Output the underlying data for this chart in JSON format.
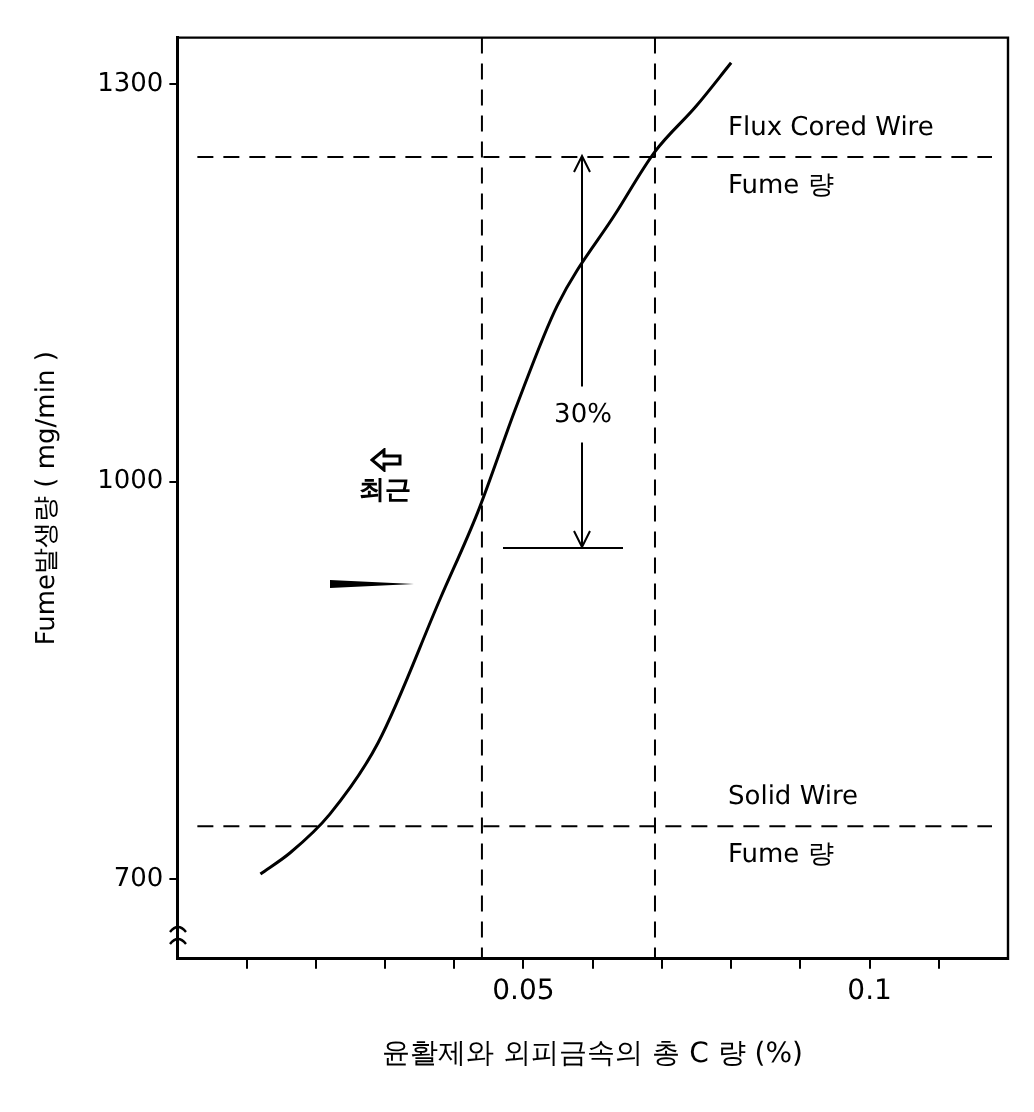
{
  "chart_data": {
    "type": "line",
    "xlabel": "윤활제와 외피금속의 총 C 량 (%)",
    "ylabel": "Fume발생량 ( mg/min )",
    "x": [
      0.012,
      0.0163,
      0.022,
      0.029,
      0.038,
      0.0434,
      0.049,
      0.0549,
      0.0634,
      0.069,
      0.0749,
      0.08
    ],
    "series": [
      {
        "color": "#000000",
        "values": [
          704,
          720,
          749,
          803,
          912,
          977,
          1057,
          1133,
          1203,
          1249,
          1283,
          1316
        ]
      }
    ],
    "xlim": [
      0,
      0.12
    ],
    "xticks": [
      {
        "value": 0.01,
        "label": null
      },
      {
        "value": 0.02,
        "label": null
      },
      {
        "value": 0.03,
        "label": null
      },
      {
        "value": 0.04,
        "label": null
      },
      {
        "value": 0.05,
        "label": "0.05"
      },
      {
        "value": 0.06,
        "label": null
      },
      {
        "value": 0.07,
        "label": null
      },
      {
        "value": 0.08,
        "label": null
      },
      {
        "value": 0.09,
        "label": null
      },
      {
        "value": 0.1,
        "label": "0.1"
      },
      {
        "value": 0.11,
        "label": null
      }
    ],
    "ylim": [
      640,
      1335
    ],
    "yticks": [
      700,
      1000,
      1300
    ],
    "ref_lines": [
      {
        "axis": "y",
        "value": 1245,
        "label": "Flux Cored Wire\nFume 량",
        "line_style": "dashed"
      },
      {
        "axis": "y",
        "value": 740,
        "label": "Solid Wire\nFume 량",
        "line_style": "dashed"
      },
      {
        "axis": "x",
        "value": 0.044,
        "line_style": "dashed"
      },
      {
        "axis": "x",
        "value": 0.069,
        "line_style": "dashed"
      },
      {
        "axis": "y",
        "value": 950
      }
    ],
    "annotations": [
      {
        "text": "30%",
        "x": 0.0586,
        "y": 1050
      },
      "최근"
    ],
    "grid": false,
    "legend": false,
    "marker": "none",
    "line_style": "solid"
  }
}
